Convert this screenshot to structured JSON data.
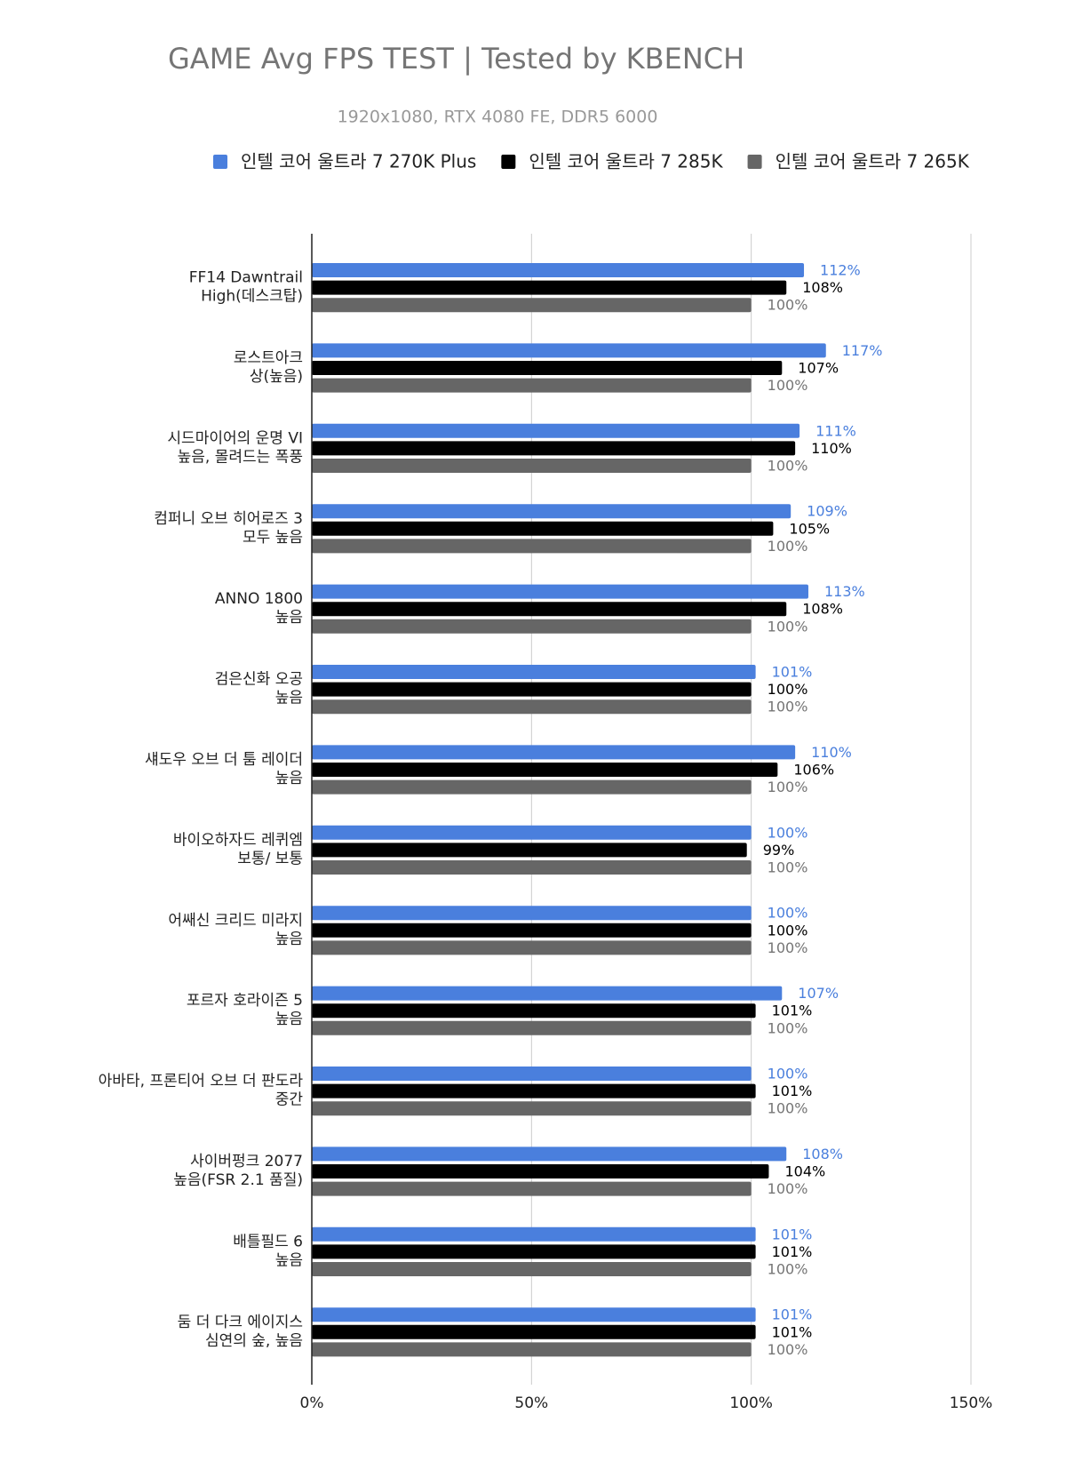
{
  "chart_data": {
    "type": "bar",
    "orientation": "horizontal",
    "title": "GAME Avg FPS TEST | Tested by KBENCH",
    "subtitle": "1920x1080, RTX 4080 FE, DDR5 6000",
    "categories": [
      [
        "FF14 Dawntrail",
        "High(데스크탑)"
      ],
      [
        "로스트아크",
        "상(높음)"
      ],
      [
        "시드마이어의 운명 VI",
        "높음, 몰려드는 폭풍"
      ],
      [
        "컴퍼니 오브 히어로즈 3",
        "모두 높음"
      ],
      [
        "ANNO 1800",
        "높음"
      ],
      [
        "검은신화 오공",
        "높음"
      ],
      [
        "섀도우 오브 더 툼 레이더",
        "높음"
      ],
      [
        "바이오하자드 레퀴엠",
        "보통/ 보통"
      ],
      [
        "어쌔신 크리드 미라지",
        "높음"
      ],
      [
        "포르자 호라이즌 5",
        "높음"
      ],
      [
        "아바타, 프론티어 오브 더 판도라",
        "중간"
      ],
      [
        "사이버펑크 2077",
        "높음(FSR 2.1 품질)"
      ],
      [
        "배틀필드 6",
        "높음"
      ],
      [
        "둠 더 다크 에이지스",
        "심연의 숲, 높음"
      ]
    ],
    "series": [
      {
        "name": "인텔 코어 울트라 7 270K Plus",
        "color": "#4a7fdd",
        "values": [
          112,
          117,
          111,
          109,
          113,
          101,
          110,
          100,
          100,
          107,
          100,
          108,
          101,
          101
        ],
        "value_labels": [
          "112%",
          "117%",
          "111%",
          "109%",
          "113%",
          "101%",
          "110%",
          "100%",
          "100%",
          "107%",
          "100%",
          "108%",
          "101%",
          "101%"
        ]
      },
      {
        "name": "인텔 코어 울트라 7 285K",
        "color": "#000000",
        "values": [
          108,
          107,
          110,
          105,
          108,
          100,
          106,
          99,
          100,
          101,
          101,
          104,
          101,
          101
        ],
        "value_labels": [
          "108%",
          "107%",
          "110%",
          "105%",
          "108%",
          "100%",
          "106%",
          "99%",
          "100%",
          "101%",
          "101%",
          "104%",
          "101%",
          "101%"
        ]
      },
      {
        "name": "인텔 코어 울트라 7 265K",
        "color": "#666666",
        "values": [
          100,
          100,
          100,
          100,
          100,
          100,
          100,
          100,
          100,
          100,
          100,
          100,
          100,
          100
        ],
        "value_labels": [
          "100%",
          "100%",
          "100%",
          "100%",
          "100%",
          "100%",
          "100%",
          "100%",
          "100%",
          "100%",
          "100%",
          "100%",
          "100%",
          "100%"
        ]
      }
    ],
    "xlim": [
      0,
      150
    ],
    "xticks": [
      {
        "value": 0,
        "label": "0%"
      },
      {
        "value": 50,
        "label": "50%"
      },
      {
        "value": 100,
        "label": "100%"
      },
      {
        "value": 150,
        "label": "150%"
      }
    ],
    "grid": true
  }
}
